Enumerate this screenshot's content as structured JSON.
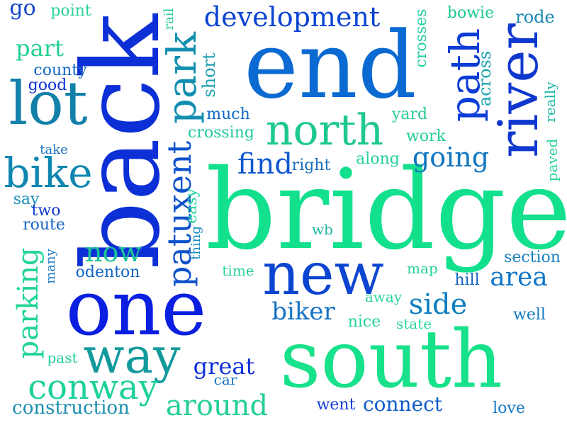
{
  "words": [
    {
      "text": "bridge",
      "color": "#12e08c",
      "vertical": false
    },
    {
      "text": "back",
      "color": "#0d2fd6",
      "vertical": true
    },
    {
      "text": "end",
      "color": "#0a6ad2",
      "vertical": false
    },
    {
      "text": "south",
      "color": "#17e18a",
      "vertical": false
    },
    {
      "text": "one",
      "color": "#0b1fe0",
      "vertical": false
    },
    {
      "text": "new",
      "color": "#0c45d0",
      "vertical": false
    },
    {
      "text": "river",
      "color": "#1038cf",
      "vertical": true
    },
    {
      "text": "lot",
      "color": "#1380aa",
      "vertical": false
    },
    {
      "text": "north",
      "color": "#1ec88f",
      "vertical": false
    },
    {
      "text": "way",
      "color": "#119a9c",
      "vertical": false
    },
    {
      "text": "park",
      "color": "#128fb0",
      "vertical": true
    },
    {
      "text": "bike",
      "color": "#0f86b0",
      "vertical": false
    },
    {
      "text": "path",
      "color": "#0c3dd6",
      "vertical": true
    },
    {
      "text": "development",
      "color": "#0a44d2",
      "vertical": false
    },
    {
      "text": "patuxent",
      "color": "#0d52cc",
      "vertical": true
    },
    {
      "text": "conway",
      "color": "#1cd09a",
      "vertical": false
    },
    {
      "text": "parking",
      "color": "#20d492",
      "vertical": true
    },
    {
      "text": "side",
      "color": "#0f7ec0",
      "vertical": false
    },
    {
      "text": "biker",
      "color": "#1472c4",
      "vertical": false
    },
    {
      "text": "around",
      "color": "#24cf97",
      "vertical": false
    },
    {
      "text": "now",
      "color": "#1bc39a",
      "vertical": false
    },
    {
      "text": "find",
      "color": "#1258d0",
      "vertical": false
    },
    {
      "text": "going",
      "color": "#1076c0",
      "vertical": false
    },
    {
      "text": "area",
      "color": "#1376c8",
      "vertical": false
    },
    {
      "text": "great",
      "color": "#0e2fd8",
      "vertical": false
    },
    {
      "text": "connect",
      "color": "#0e5cc9",
      "vertical": false
    },
    {
      "text": "construction",
      "color": "#1a8eb0",
      "vertical": false
    },
    {
      "text": "part",
      "color": "#21d08f",
      "vertical": false
    },
    {
      "text": "go",
      "color": "#1346c8",
      "vertical": false
    },
    {
      "text": "point",
      "color": "#2ad29c",
      "vertical": false
    },
    {
      "text": "rail",
      "color": "#27c996",
      "vertical": true
    },
    {
      "text": "bowie",
      "color": "#1bc98f",
      "vertical": false
    },
    {
      "text": "rode",
      "color": "#1688b4",
      "vertical": false
    },
    {
      "text": "crosses",
      "color": "#22d0a0",
      "vertical": true
    },
    {
      "text": "short",
      "color": "#1a9fb2",
      "vertical": true
    },
    {
      "text": "county",
      "color": "#1168c4",
      "vertical": false
    },
    {
      "text": "good",
      "color": "#0d2fd8",
      "vertical": false
    },
    {
      "text": "across",
      "color": "#18a2b0",
      "vertical": true
    },
    {
      "text": "really",
      "color": "#19b7a6",
      "vertical": true
    },
    {
      "text": "much",
      "color": "#0f6ac6",
      "vertical": false
    },
    {
      "text": "yard",
      "color": "#26cb96",
      "vertical": false
    },
    {
      "text": "crossing",
      "color": "#21c9a0",
      "vertical": false
    },
    {
      "text": "work",
      "color": "#21d09a",
      "vertical": false
    },
    {
      "text": "take",
      "color": "#1d6fc0",
      "vertical": false
    },
    {
      "text": "right",
      "color": "#1b6fbc",
      "vertical": false
    },
    {
      "text": "along",
      "color": "#26d0a0",
      "vertical": false
    },
    {
      "text": "paved",
      "color": "#2ad59a",
      "vertical": true
    },
    {
      "text": "say",
      "color": "#1a8fb8",
      "vertical": false
    },
    {
      "text": "easy",
      "color": "#22d4a0",
      "vertical": true
    },
    {
      "text": "two",
      "color": "#0e3cd6",
      "vertical": false
    },
    {
      "text": "route",
      "color": "#1466c4",
      "vertical": false
    },
    {
      "text": "thing",
      "color": "#1688bc",
      "vertical": true
    },
    {
      "text": "wb",
      "color": "#1eb6a4",
      "vertical": false
    },
    {
      "text": "many",
      "color": "#1c7cc2",
      "vertical": true
    },
    {
      "text": "odenton",
      "color": "#1266c6",
      "vertical": false
    },
    {
      "text": "time",
      "color": "#26cf98",
      "vertical": false
    },
    {
      "text": "map",
      "color": "#26d19a",
      "vertical": false
    },
    {
      "text": "section",
      "color": "#1a80be",
      "vertical": false
    },
    {
      "text": "hill",
      "color": "#1466c4",
      "vertical": false
    },
    {
      "text": "away",
      "color": "#2ad69e",
      "vertical": false
    },
    {
      "text": "well",
      "color": "#1478c2",
      "vertical": false
    },
    {
      "text": "nice",
      "color": "#27d29c",
      "vertical": false
    },
    {
      "text": "state",
      "color": "#2ad7a0",
      "vertical": false
    },
    {
      "text": "past",
      "color": "#21cfa0",
      "vertical": false
    },
    {
      "text": "car",
      "color": "#1974c2",
      "vertical": false
    },
    {
      "text": "went",
      "color": "#0e3cd6",
      "vertical": false
    },
    {
      "text": "love",
      "color": "#1478c4",
      "vertical": false
    }
  ]
}
